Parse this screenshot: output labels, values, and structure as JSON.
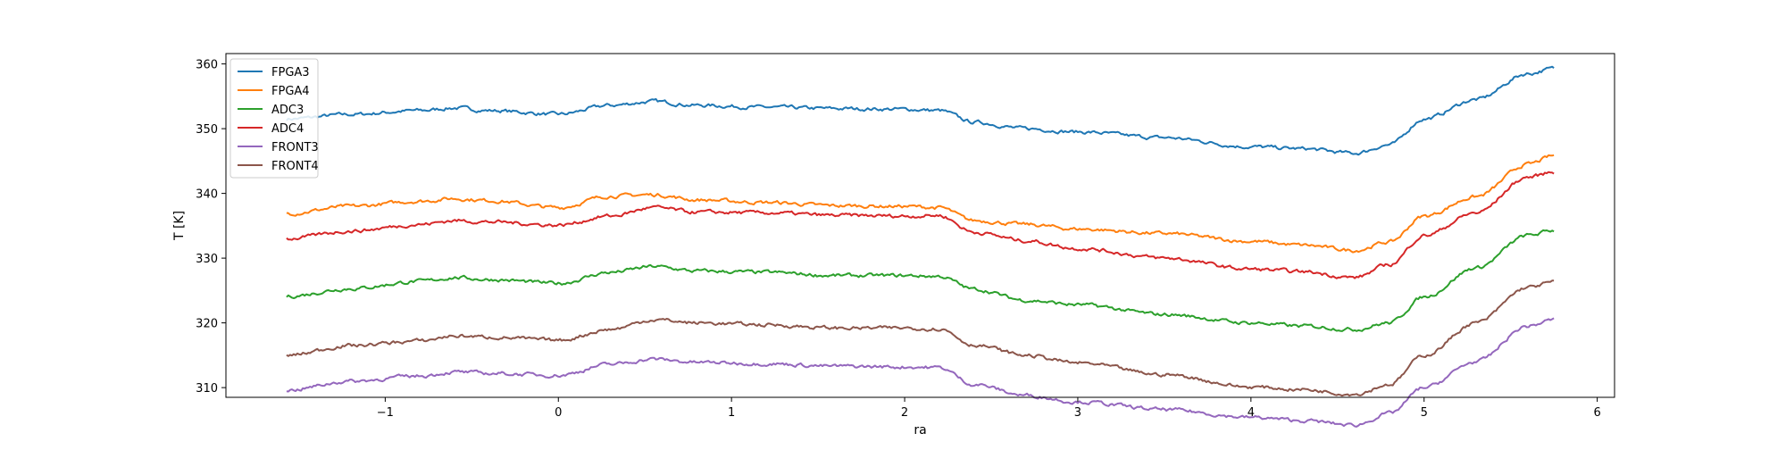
{
  "chart_data": {
    "type": "line",
    "title": "",
    "xlabel": "ra",
    "ylabel": "T [K]",
    "xlim": [
      -1.92,
      6.1
    ],
    "ylim": [
      308.5,
      361.6
    ],
    "xticks": [
      -1,
      0,
      1,
      2,
      3,
      4,
      5,
      6
    ],
    "yticks": [
      310,
      320,
      330,
      340,
      350,
      360
    ],
    "xtick_labels": [
      "−1",
      "0",
      "1",
      "2",
      "3",
      "4",
      "5",
      "6"
    ],
    "ytick_labels": [
      "310",
      "320",
      "330",
      "340",
      "350",
      "360"
    ],
    "grid": false,
    "legend_position": "upper-left",
    "x": [
      -1.57,
      -1.2,
      -0.8,
      -0.6,
      -0.4,
      0.0,
      0.3,
      0.55,
      0.8,
      1.2,
      1.6,
      2.0,
      2.2,
      2.4,
      2.7,
      3.0,
      3.5,
      4.0,
      4.3,
      4.6,
      4.8,
      5.0,
      5.3,
      5.6,
      5.75
    ],
    "series": [
      {
        "name": "FPGA3",
        "color": "#1f77b4",
        "values": [
          351.5,
          352.2,
          352.8,
          353.2,
          352.8,
          352.2,
          353.6,
          354.2,
          353.6,
          353.3,
          353.1,
          353.0,
          352.8,
          351.0,
          350.0,
          349.5,
          348.6,
          347.2,
          346.9,
          346.2,
          347.5,
          351.5,
          354.5,
          358.5,
          359.3
        ]
      },
      {
        "name": "FPGA4",
        "color": "#ff7f0e",
        "values": [
          336.9,
          338.0,
          338.8,
          339.2,
          338.9,
          337.8,
          339.6,
          339.8,
          339.0,
          338.6,
          338.1,
          338.0,
          337.8,
          335.8,
          335.2,
          334.5,
          333.8,
          332.6,
          332.0,
          331.2,
          332.5,
          336.5,
          339.5,
          344.5,
          345.8
        ]
      },
      {
        "name": "ADC3",
        "color": "#2ca02c",
        "values": [
          324.1,
          325.3,
          326.4,
          327.0,
          326.7,
          326.1,
          327.8,
          328.7,
          328.0,
          327.8,
          327.3,
          327.3,
          327.2,
          325.2,
          323.5,
          322.8,
          321.3,
          320.0,
          319.5,
          319.0,
          320.0,
          324.0,
          328.5,
          333.5,
          334.3
        ]
      },
      {
        "name": "ADC4",
        "color": "#d62728",
        "values": [
          333.0,
          334.2,
          335.2,
          335.8,
          335.6,
          335.1,
          336.5,
          337.8,
          337.1,
          337.0,
          336.6,
          336.5,
          336.6,
          334.0,
          332.7,
          331.5,
          330.0,
          328.3,
          327.9,
          327.0,
          329.0,
          333.5,
          337.0,
          342.5,
          343.3
        ]
      },
      {
        "name": "FRONT3",
        "color": "#9467bd",
        "values": [
          309.6,
          311.0,
          311.8,
          312.4,
          312.2,
          311.9,
          313.6,
          314.4,
          313.9,
          313.7,
          313.3,
          313.2,
          313.1,
          310.5,
          308.8,
          307.8,
          306.6,
          305.4,
          304.9,
          304.2,
          306.0,
          310.0,
          314.0,
          319.5,
          320.5
        ]
      },
      {
        "name": "FRONT4",
        "color": "#8c564b",
        "values": [
          315.0,
          316.5,
          317.2,
          318.0,
          317.8,
          317.3,
          319.0,
          320.5,
          320.0,
          319.7,
          319.2,
          319.2,
          319.1,
          316.6,
          315.0,
          313.8,
          312.0,
          310.1,
          309.7,
          309.0,
          310.5,
          315.0,
          320.0,
          325.5,
          326.3
        ]
      }
    ]
  }
}
